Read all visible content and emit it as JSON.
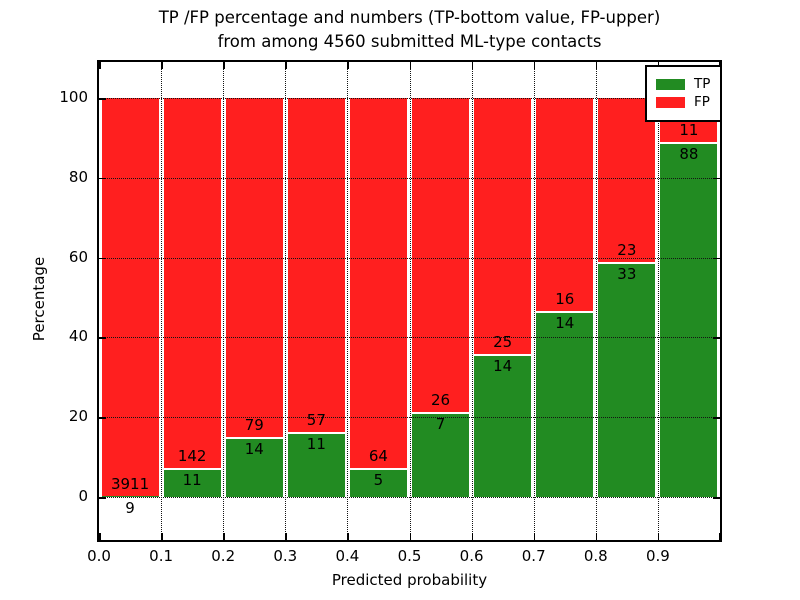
{
  "figure": {
    "title_line1": "TP /FP percentage and numbers (TP-bottom value, FP-upper)",
    "title_line2": "from among 4560 submitted ML-type contacts"
  },
  "chart_data": {
    "type": "bar",
    "stacked": true,
    "normalized_to_percent": true,
    "title": "TP /FP percentage and numbers (TP-bottom value, FP-upper) from among 4560 submitted ML-type contacts",
    "xlabel": "Predicted probability",
    "ylabel": "Percentage",
    "categories": [
      "0.0-0.1",
      "0.1-0.2",
      "0.2-0.3",
      "0.3-0.4",
      "0.4-0.5",
      "0.5-0.6",
      "0.6-0.7",
      "0.7-0.8",
      "0.8-0.9",
      "0.9-1.0"
    ],
    "series": [
      {
        "name": "TP",
        "color": "#228b22",
        "values": [
          9,
          11,
          14,
          11,
          5,
          7,
          14,
          14,
          33,
          88
        ]
      },
      {
        "name": "FP",
        "color": "#ff1f1f",
        "values": [
          3911,
          142,
          79,
          57,
          64,
          26,
          25,
          16,
          23,
          11
        ]
      }
    ],
    "total_contacts": 4560,
    "x_tick_labels": [
      "0.0",
      "0.1",
      "0.2",
      "0.3",
      "0.4",
      "0.5",
      "0.6",
      "0.7",
      "0.8",
      "0.9"
    ],
    "y_ticks": [
      0,
      20,
      40,
      60,
      80,
      100
    ],
    "y_tick_labels": [
      "0",
      "20",
      "40",
      "60",
      "80",
      "100"
    ],
    "xlim": [
      0.0,
      1.0
    ],
    "ylim": [
      -10.8,
      109
    ],
    "grid": "dotted",
    "legend_position": "upper right"
  },
  "legend": {
    "items": [
      {
        "label": "TP",
        "color": "#228b22"
      },
      {
        "label": "FP",
        "color": "#ff1f1f"
      }
    ]
  }
}
